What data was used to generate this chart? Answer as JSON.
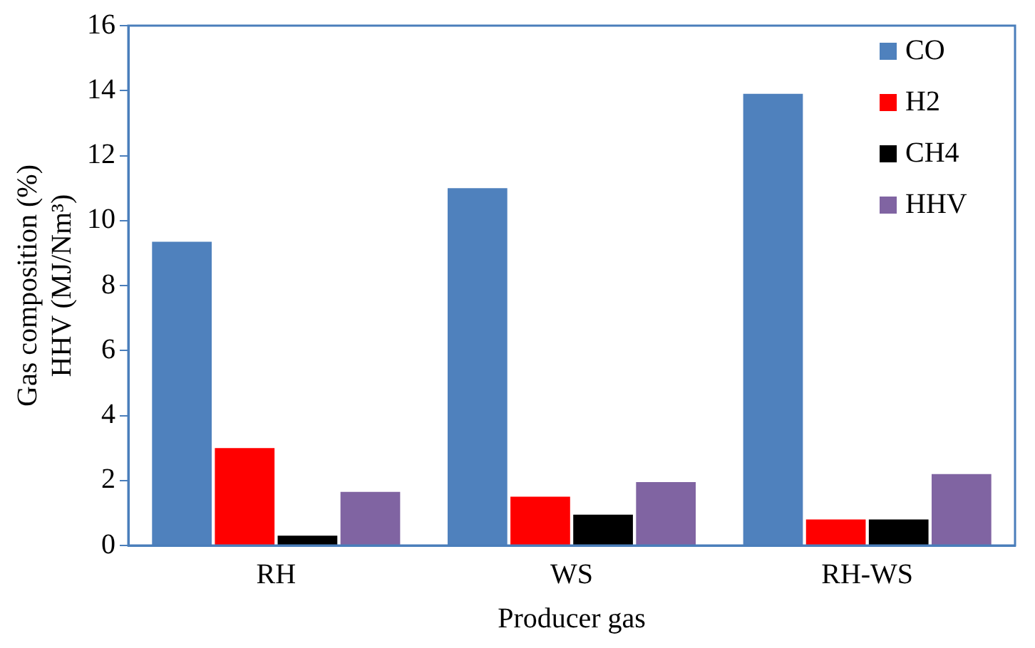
{
  "chart_data": {
    "type": "bar",
    "xlabel": "Producer gas",
    "ylabel": "Gas composition (%)\nHHV (MJ/Nm³)",
    "categories": [
      "RH",
      "WS",
      "RH-WS"
    ],
    "series": [
      {
        "name": "CO",
        "color": "#4f81bd",
        "values": [
          9.35,
          11.0,
          13.9
        ]
      },
      {
        "name": "H2",
        "color": "#ff0000",
        "values": [
          3.0,
          1.5,
          0.8
        ]
      },
      {
        "name": "CH4",
        "color": "#000000",
        "values": [
          0.3,
          0.95,
          0.8
        ]
      },
      {
        "name": "HHV",
        "color": "#8064a2",
        "values": [
          1.65,
          1.95,
          2.2
        ]
      }
    ],
    "ylim": [
      0,
      16
    ],
    "yticks": [
      0,
      2,
      4,
      6,
      8,
      10,
      12,
      14,
      16
    ],
    "grid": false,
    "legend": "top right"
  }
}
